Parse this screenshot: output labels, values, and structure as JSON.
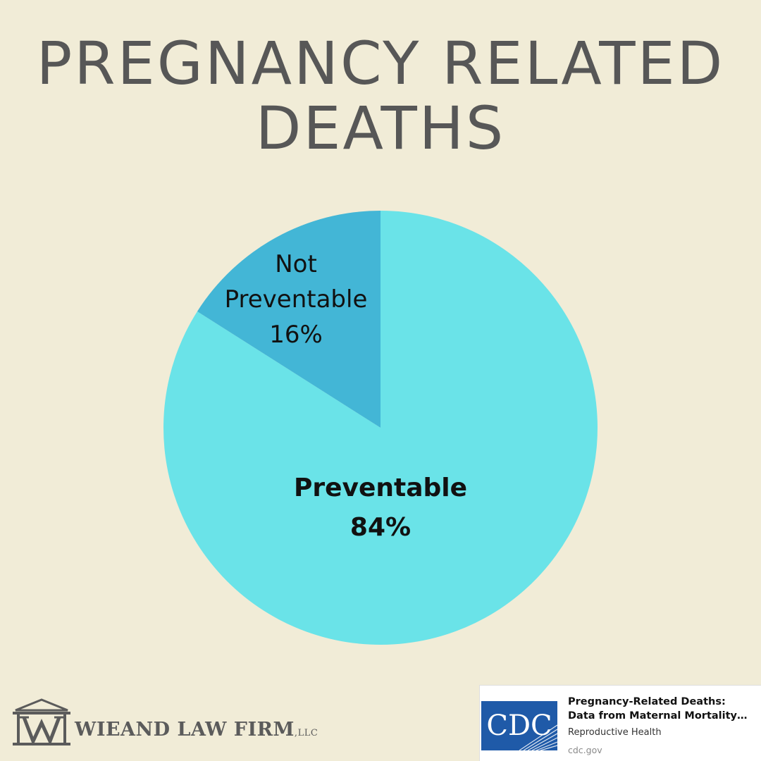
{
  "title": {
    "line1": "PREGNANCY RELATED",
    "line2": "DEATHS"
  },
  "chart_data": {
    "type": "pie",
    "categories": [
      "Preventable",
      "Not Preventable"
    ],
    "values": [
      84,
      16
    ],
    "colors": [
      "#6ae3e8",
      "#43b6d6"
    ],
    "labels": [
      {
        "name_lines": [
          "Preventable"
        ],
        "value_text": "84%"
      },
      {
        "name_lines": [
          "Not",
          "Preventable"
        ],
        "value_text": "16%"
      }
    ]
  },
  "firm": {
    "name": "WIEAND LAW FIRM",
    "suffix": "LLC",
    "logo_icon": "courthouse-w-icon"
  },
  "source_card": {
    "logo_text": "CDC",
    "title_line1": "Pregnancy-Related Deaths:",
    "title_line2": "Data from Maternal Mortality…",
    "subtitle": "Reproductive Health",
    "domain": "cdc.gov",
    "logo_color": "#1f5aa8"
  }
}
